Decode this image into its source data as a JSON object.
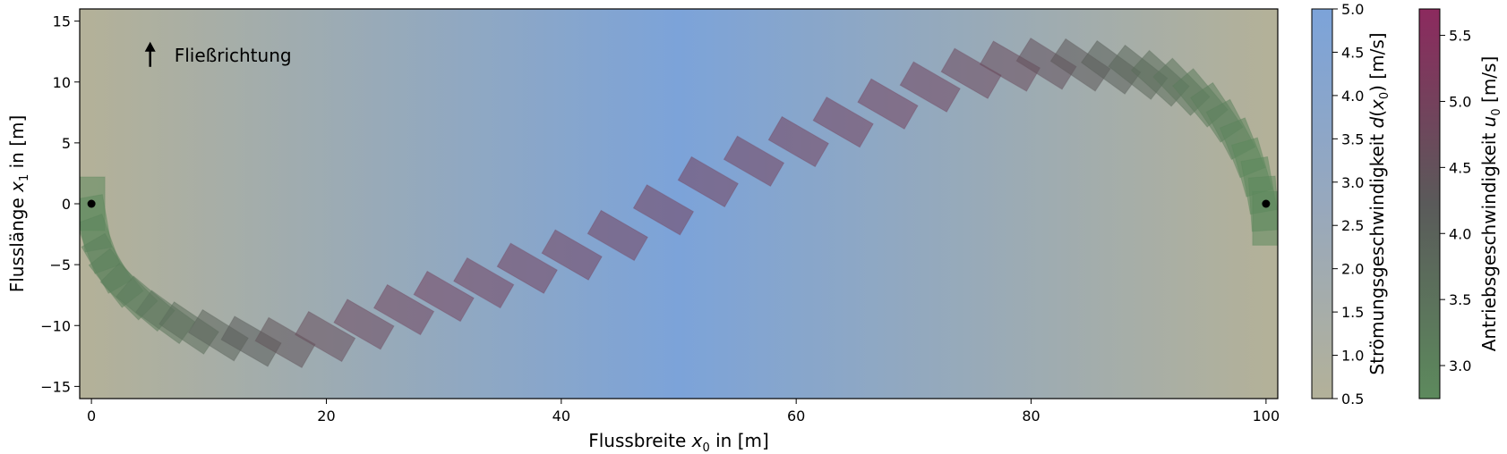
{
  "chart_data": {
    "type": "scatter",
    "title": "",
    "xlabel": {
      "prefix": "Flussbreite ",
      "var": "x",
      "sub": "0",
      "suffix": " in [m]"
    },
    "ylabel": {
      "prefix": "Flusslänge ",
      "var": "x",
      "sub": "1",
      "suffix": " in [m]"
    },
    "xlim": [
      -1,
      101
    ],
    "ylim": [
      -16,
      16
    ],
    "xticks": [
      0,
      20,
      40,
      60,
      80,
      100
    ],
    "yticks": [
      -15,
      -10,
      -5,
      0,
      5,
      10,
      15
    ],
    "xtick_labels": [
      "0",
      "20",
      "40",
      "60",
      "80",
      "100"
    ],
    "ytick_labels": [
      "−15",
      "−10",
      "−5",
      "0",
      "5",
      "10",
      "15"
    ],
    "annotation": {
      "text": "Fließrichtung",
      "x": 5,
      "y": 12.2
    },
    "endpoints": [
      {
        "x": 0,
        "y": 0
      },
      {
        "x": 100,
        "y": 0
      }
    ],
    "background_gradient": {
      "quantity": "Strömungsgeschwindigkeit d(x0)",
      "values_at_x": [
        {
          "x": 0,
          "v": 0.5
        },
        {
          "x": 50,
          "v": 5.0
        },
        {
          "x": 100,
          "v": 0.5
        }
      ]
    },
    "boat_positions": [
      {
        "x": 0.0,
        "y": 0.0,
        "angle": 90,
        "u": 2.8
      },
      {
        "x": 0.2,
        "y": -1.6,
        "angle": 80,
        "u": 2.8
      },
      {
        "x": 0.6,
        "y": -3.3,
        "angle": 70,
        "u": 2.9
      },
      {
        "x": 1.3,
        "y": -4.9,
        "angle": 60,
        "u": 3.0
      },
      {
        "x": 2.1,
        "y": -6.1,
        "angle": 52,
        "u": 3.0
      },
      {
        "x": 3.2,
        "y": -7.2,
        "angle": 45,
        "u": 3.1
      },
      {
        "x": 4.6,
        "y": -8.2,
        "angle": 40,
        "u": 3.2
      },
      {
        "x": 6.3,
        "y": -9.3,
        "angle": 36,
        "u": 3.4
      },
      {
        "x": 8.3,
        "y": -10.2,
        "angle": 34,
        "u": 3.6
      },
      {
        "x": 10.8,
        "y": -10.8,
        "angle": 32,
        "u": 3.9
      },
      {
        "x": 13.6,
        "y": -11.3,
        "angle": 30,
        "u": 4.2
      },
      {
        "x": 16.5,
        "y": -11.4,
        "angle": 30,
        "u": 4.4
      },
      {
        "x": 19.9,
        "y": -10.9,
        "angle": 30,
        "u": 4.6
      },
      {
        "x": 23.2,
        "y": -9.9,
        "angle": 30,
        "u": 4.8
      },
      {
        "x": 26.6,
        "y": -8.7,
        "angle": 30,
        "u": 4.9
      },
      {
        "x": 30.0,
        "y": -7.6,
        "angle": 30,
        "u": 5.0
      },
      {
        "x": 33.4,
        "y": -6.5,
        "angle": 30,
        "u": 5.0
      },
      {
        "x": 37.1,
        "y": -5.3,
        "angle": 30,
        "u": 5.0
      },
      {
        "x": 40.9,
        "y": -4.2,
        "angle": 30,
        "u": 5.0
      },
      {
        "x": 44.8,
        "y": -2.6,
        "angle": 30,
        "u": 5.0
      },
      {
        "x": 48.7,
        "y": -0.5,
        "angle": 30,
        "u": 5.0
      },
      {
        "x": 52.5,
        "y": 1.8,
        "angle": 30,
        "u": 5.0
      },
      {
        "x": 56.4,
        "y": 3.5,
        "angle": 30,
        "u": 5.0
      },
      {
        "x": 60.2,
        "y": 5.1,
        "angle": 30,
        "u": 5.0
      },
      {
        "x": 64.0,
        "y": 6.7,
        "angle": 30,
        "u": 5.0
      },
      {
        "x": 67.8,
        "y": 8.2,
        "angle": 30,
        "u": 5.0
      },
      {
        "x": 71.4,
        "y": 9.6,
        "angle": 30,
        "u": 4.9
      },
      {
        "x": 74.9,
        "y": 10.7,
        "angle": 30,
        "u": 4.8
      },
      {
        "x": 78.2,
        "y": 11.3,
        "angle": 30,
        "u": 4.7
      },
      {
        "x": 81.3,
        "y": 11.5,
        "angle": 32,
        "u": 4.5
      },
      {
        "x": 84.2,
        "y": 11.4,
        "angle": 34,
        "u": 4.3
      },
      {
        "x": 86.8,
        "y": 11.2,
        "angle": 36,
        "u": 4.1
      },
      {
        "x": 89.1,
        "y": 10.8,
        "angle": 38,
        "u": 3.8
      },
      {
        "x": 91.0,
        "y": 10.3,
        "angle": 42,
        "u": 3.6
      },
      {
        "x": 92.8,
        "y": 9.6,
        "angle": 46,
        "u": 3.4
      },
      {
        "x": 94.4,
        "y": 8.7,
        "angle": 50,
        "u": 3.2
      },
      {
        "x": 95.8,
        "y": 7.5,
        "angle": 56,
        "u": 3.1
      },
      {
        "x": 97.0,
        "y": 6.1,
        "angle": 62,
        "u": 3.0
      },
      {
        "x": 98.0,
        "y": 4.6,
        "angle": 68,
        "u": 2.9
      },
      {
        "x": 98.8,
        "y": 3.0,
        "angle": 74,
        "u": 2.8
      },
      {
        "x": 99.4,
        "y": 1.5,
        "angle": 80,
        "u": 2.8
      },
      {
        "x": 99.8,
        "y": 0.0,
        "angle": 86,
        "u": 2.8
      },
      {
        "x": 100.0,
        "y": -1.2,
        "angle": 90,
        "u": 2.8
      }
    ],
    "colorbars": [
      {
        "label": {
          "prefix": "Strömungsgeschwindigkeit ",
          "var": "d",
          "arg": "x",
          "sub": "0",
          "suffix": " [m/s]"
        },
        "min": 0.5,
        "max": 5.0,
        "ticks": [
          0.5,
          1.0,
          1.5,
          2.0,
          2.5,
          3.0,
          3.5,
          4.0,
          4.5,
          5.0
        ],
        "tick_labels": [
          "0.5",
          "1.0",
          "1.5",
          "2.0",
          "2.5",
          "3.0",
          "3.5",
          "4.0",
          "4.5",
          "5.0"
        ],
        "color_min": "#b3b199",
        "color_mid": "#97a8bd",
        "color_max": "#7ca3d9"
      },
      {
        "label": {
          "prefix": "Antriebsgeschwindigkeit ",
          "var": "u",
          "sub": "0",
          "suffix": " [m/s]"
        },
        "min": 2.75,
        "max": 5.7,
        "ticks": [
          3.0,
          3.5,
          4.0,
          4.5,
          5.0,
          5.5
        ],
        "tick_labels": [
          "3.0",
          "3.5",
          "4.0",
          "4.5",
          "5.0",
          "5.5"
        ],
        "color_min": "#5d8a5d",
        "color_mid": "#5a5a5a",
        "color_max": "#8c2a5e"
      }
    ]
  }
}
